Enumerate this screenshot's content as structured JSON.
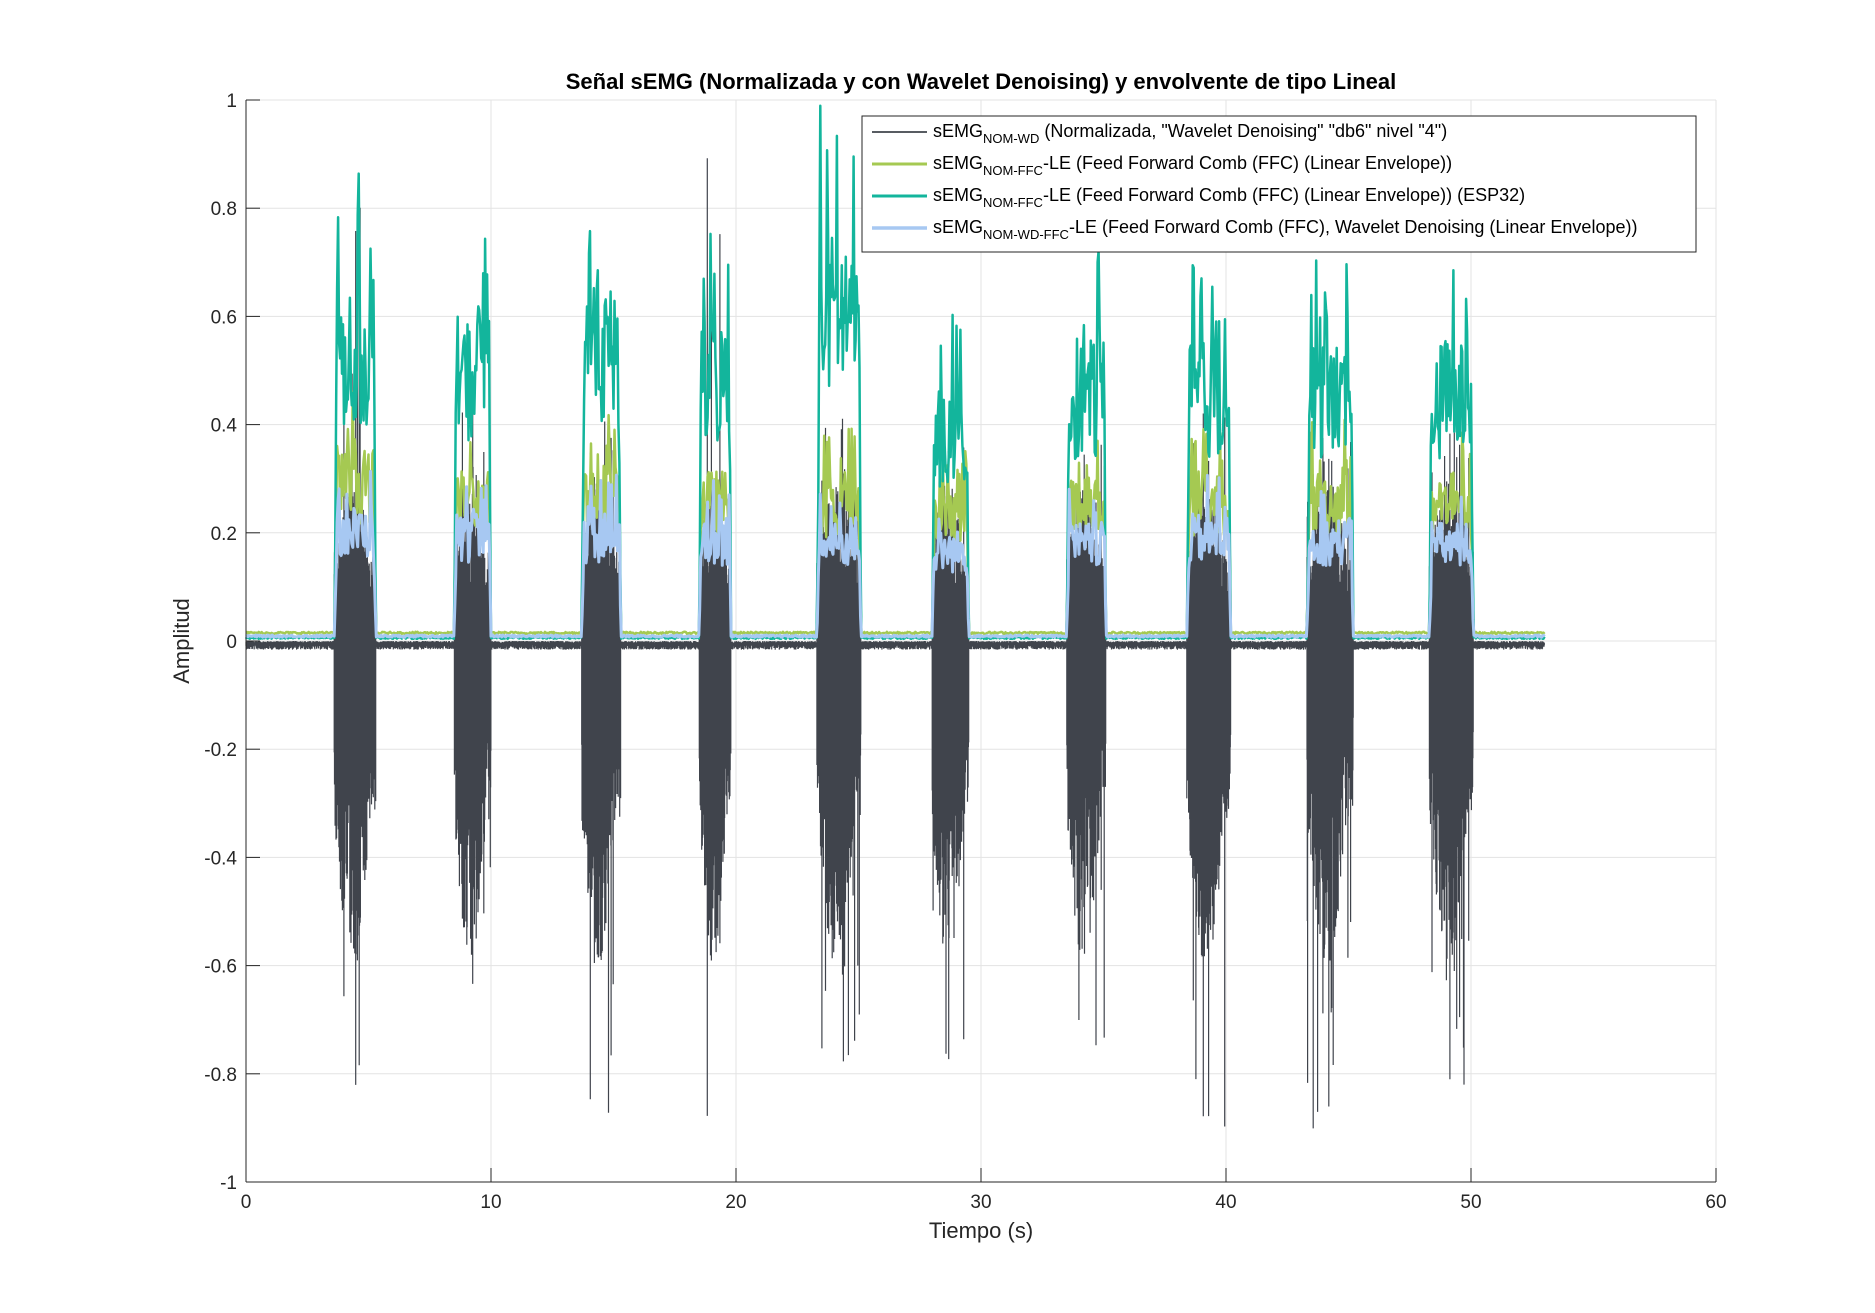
{
  "chart_data": {
    "type": "line",
    "title": "Señal sEMG (Normalizada y con Wavelet Denoising) y envolvente de tipo Lineal",
    "xlabel": "Tiempo (s)",
    "ylabel": "Amplitud",
    "xlim": [
      0,
      60
    ],
    "ylim": [
      -1,
      1
    ],
    "xticks": [
      0,
      10,
      20,
      30,
      40,
      50,
      60
    ],
    "yticks": [
      -1,
      -0.8,
      -0.6,
      -0.4,
      -0.2,
      0,
      0.2,
      0.4,
      0.6,
      0.8,
      1
    ],
    "ytick_labels": [
      "-1",
      "-0.8",
      "-0.6",
      "-0.4",
      "-0.2",
      "0",
      "0.2",
      "0.4",
      "0.6",
      "0.8",
      "1"
    ],
    "grid": true,
    "legend_position": "top-right",
    "signal_end": 53,
    "bursts": [
      {
        "start": 3.6,
        "end": 5.3,
        "raw_max": 0.89,
        "raw_min": -0.86,
        "le_max": 0.45,
        "esp_max": 0.86,
        "wd_max": 0.32
      },
      {
        "start": 8.5,
        "end": 10.0,
        "raw_max": 0.45,
        "raw_min": -0.72,
        "le_max": 0.4,
        "esp_max": 0.79,
        "wd_max": 0.3
      },
      {
        "start": 13.7,
        "end": 15.3,
        "raw_max": 0.45,
        "raw_min": -0.88,
        "le_max": 0.42,
        "esp_max": 0.86,
        "wd_max": 0.3
      },
      {
        "start": 18.5,
        "end": 19.8,
        "raw_max": 0.93,
        "raw_min": -0.88,
        "le_max": 0.4,
        "esp_max": 0.78,
        "wd_max": 0.29
      },
      {
        "start": 23.3,
        "end": 25.1,
        "raw_max": 0.42,
        "raw_min": -0.79,
        "le_max": 0.38,
        "esp_max": 1.0,
        "wd_max": 0.28
      },
      {
        "start": 28.0,
        "end": 29.5,
        "raw_max": 0.38,
        "raw_min": -0.78,
        "le_max": 0.35,
        "esp_max": 0.6,
        "wd_max": 0.26
      },
      {
        "start": 33.5,
        "end": 35.1,
        "raw_max": 0.42,
        "raw_min": -0.79,
        "le_max": 0.38,
        "esp_max": 0.73,
        "wd_max": 0.28
      },
      {
        "start": 38.4,
        "end": 40.2,
        "raw_max": 0.44,
        "raw_min": -0.9,
        "le_max": 0.4,
        "esp_max": 0.73,
        "wd_max": 0.3
      },
      {
        "start": 43.3,
        "end": 45.2,
        "raw_max": 0.38,
        "raw_min": -0.93,
        "le_max": 0.4,
        "esp_max": 0.73,
        "wd_max": 0.29
      },
      {
        "start": 48.3,
        "end": 50.1,
        "raw_max": 0.4,
        "raw_min": -0.85,
        "le_max": 0.38,
        "esp_max": 0.73,
        "wd_max": 0.28
      }
    ],
    "series": [
      {
        "key": "raw",
        "base": "sEMG",
        "sub": "NOM-WD",
        "suffix": " (Normalizada, \"Wavelet Denoising\" \"db6\" nivel \"4\")",
        "color": "#40444c",
        "width": 1.2
      },
      {
        "key": "le",
        "base": "sEMG",
        "sub": "NOM-FFC",
        "suffix": "-LE (Feed Forward Comb (FFC) (Linear Envelope))",
        "color": "#a5c952",
        "width": 2.5
      },
      {
        "key": "esp",
        "base": "sEMG",
        "sub": "NOM-FFC",
        "suffix": "-LE (Feed Forward Comb (FFC) (Linear Envelope)) (ESP32)",
        "color": "#13b59c",
        "width": 2.5
      },
      {
        "key": "wd",
        "base": "sEMG",
        "sub": "NOM-WD-FFC",
        "suffix": "-LE (Feed Forward Comb (FFC), Wavelet Denoising (Linear Envelope))",
        "color": "#a7c8f2",
        "width": 3
      }
    ]
  }
}
